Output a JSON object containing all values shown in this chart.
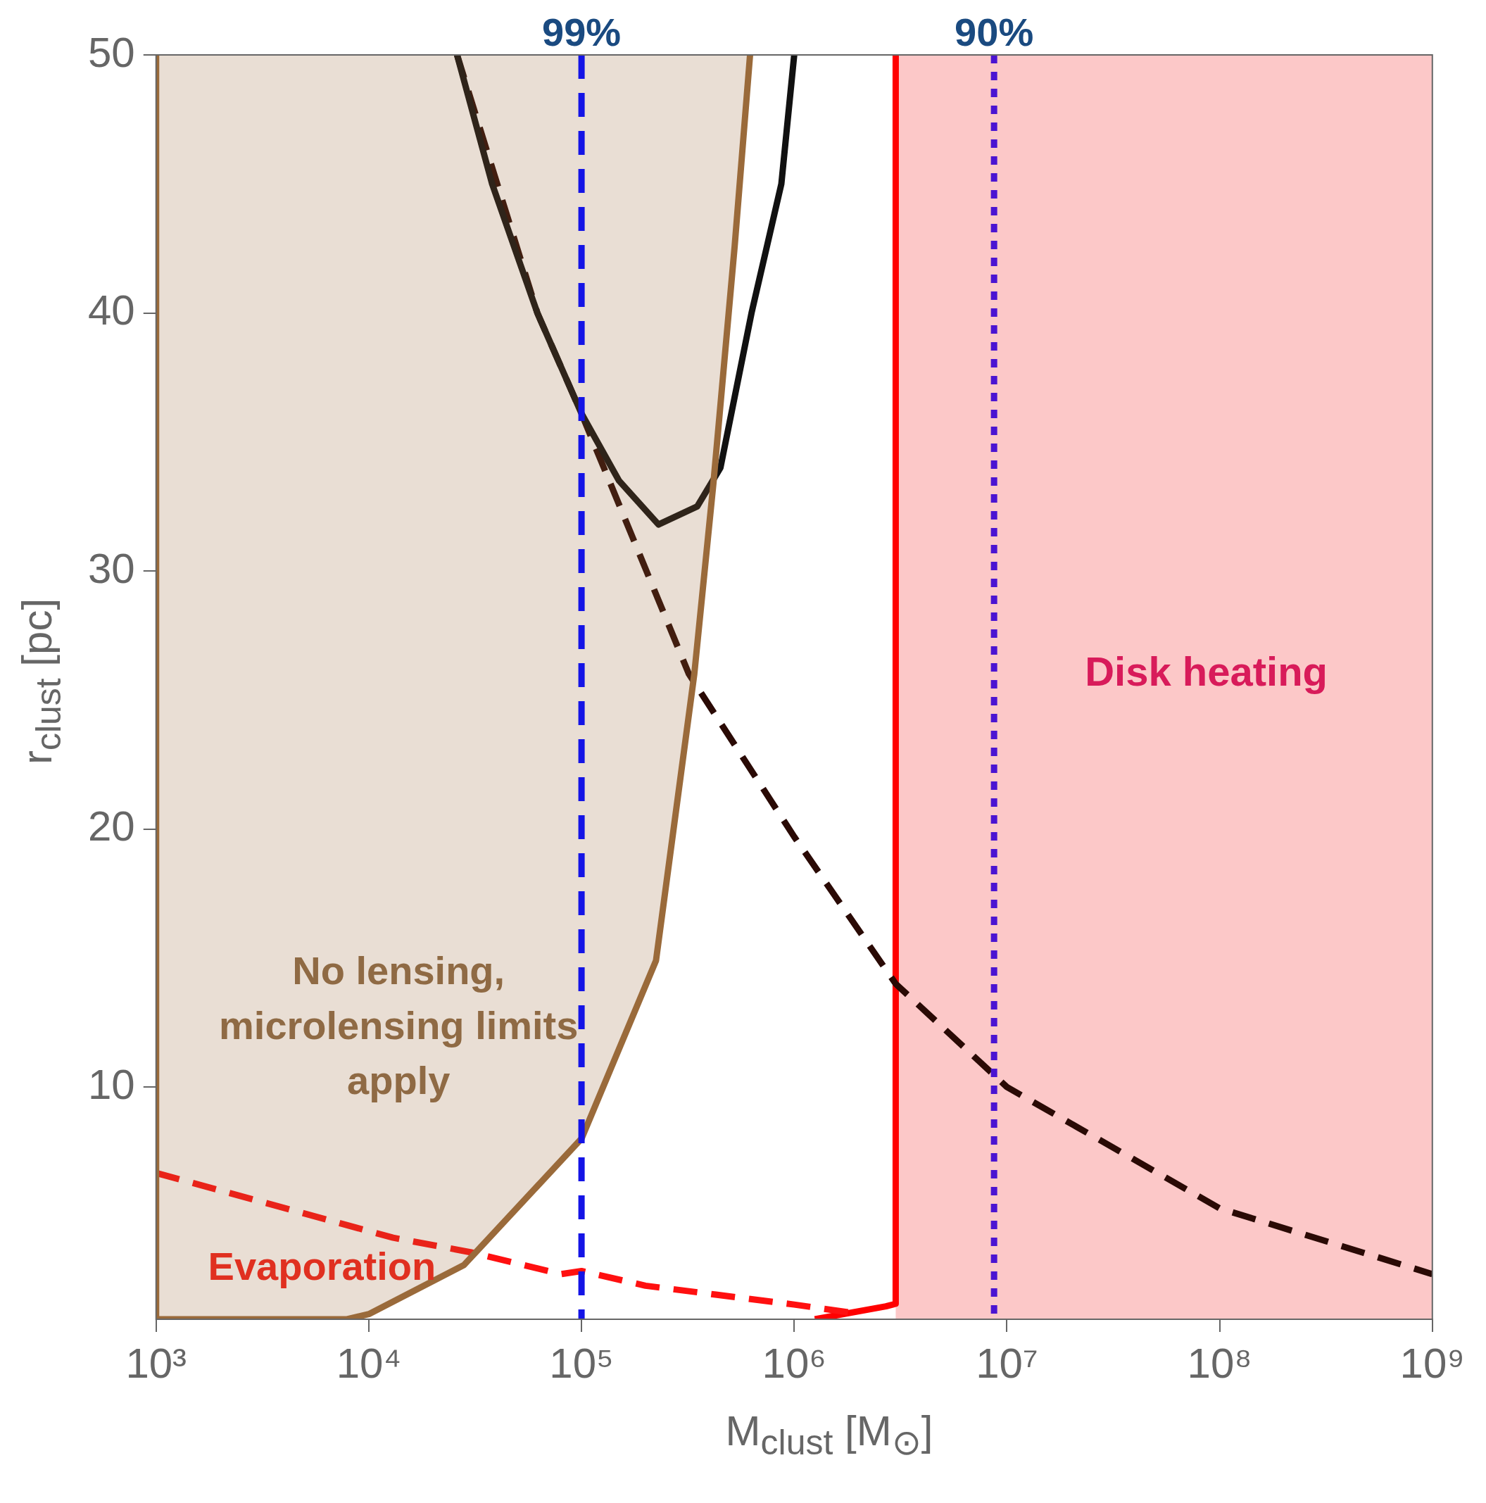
{
  "chart_data": {
    "type": "line",
    "xlabel": "M$_{clust}$ [M$_{⊙}$]",
    "ylabel": "r$_{clust}$ [pc]",
    "log": "x",
    "xlim": [
      1000,
      1000000000
    ],
    "xticks": [
      {
        "value": 1000,
        "label": "10³"
      },
      {
        "value": 10000,
        "label": "10⁴"
      },
      {
        "value": 100000,
        "label": "10⁵"
      },
      {
        "value": 1000000,
        "label": "10⁶"
      },
      {
        "value": 10000000,
        "label": "10⁷"
      },
      {
        "value": 100000000,
        "label": "10⁸"
      },
      {
        "value": 1000000000,
        "label": "10⁹"
      }
    ],
    "ylim": [
      1,
      50
    ],
    "yticks": [
      10,
      20,
      30,
      40,
      50
    ],
    "series": [
      {
        "type": "area",
        "color": "#9a6a3a",
        "x": [
          1000,
          1000,
          7900,
          10000,
          28000,
          100000,
          224000,
          339000,
          417000,
          525000,
          620000
        ],
        "values": [
          50,
          1,
          1,
          1.2,
          3.1,
          8,
          14.9,
          26,
          33.4,
          42.6,
          50
        ]
      },
      {
        "color": "#111111",
        "x": [
          26000,
          38000,
          62000,
          100000,
          150000,
          230000,
          350000,
          450000,
          630000,
          870000,
          1000000
        ],
        "values": [
          50,
          45,
          40,
          36.1,
          33.5,
          31.8,
          32.5,
          34,
          40,
          45,
          50
        ]
      },
      {
        "color": "#2a0a05",
        "line_style": "dashed",
        "x": [
          26000,
          62000,
          100000,
          180000,
          320000,
          1000000,
          3000000,
          10000000,
          100000000,
          1000000000
        ],
        "values": [
          50,
          40,
          36.1,
          31,
          26,
          19.7,
          14,
          10,
          5.3,
          2.75
        ]
      },
      {
        "color": "#ff1010",
        "line_style": "dashed",
        "x": [
          1000,
          13000,
          30000,
          80000,
          100000,
          200000,
          1000000,
          1800000
        ],
        "values": [
          6.67,
          4.16,
          3.6,
          2.75,
          2.87,
          2.3,
          1.57,
          1.27
        ]
      },
      {
        "color": "#ff0000",
        "x": [
          1250000,
          2700000,
          3000000,
          3000000
        ],
        "values": [
          1,
          1.5,
          1.6,
          50
        ]
      }
    ],
    "bands": [
      {
        "axis": "x",
        "from": 3000000,
        "to": 1000000000,
        "label": "Disk heating",
        "color": "#fcc8c8"
      }
    ],
    "ref_lines": [
      {
        "axis": "x",
        "value": 100000,
        "color": "#1414e6",
        "line_style": "dashed"
      },
      {
        "axis": "x",
        "value": 8700000,
        "color": "#4a14d2",
        "line_style": "dotted"
      }
    ],
    "annotations": [
      {
        "text": "99%",
        "x": 100000,
        "y": 50
      },
      {
        "text": "90%",
        "x": 8700000,
        "y": 50
      },
      "No lensing,\nmicrolensing limits\napply",
      "Evaporation"
    ]
  }
}
